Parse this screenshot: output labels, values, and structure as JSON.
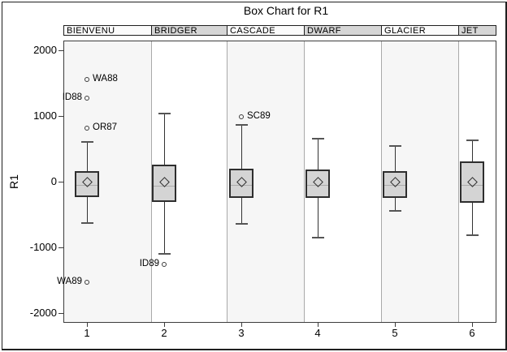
{
  "chart_data": {
    "type": "box",
    "title": "Box Chart for R1",
    "xlabel": "",
    "ylabel": "R1",
    "ylim": [
      -2135,
      2150
    ],
    "y_ticks": [
      2000,
      1000,
      0,
      -1000,
      -2000
    ],
    "x_ticks": [
      "1",
      "2",
      "3",
      "4",
      "5",
      "6"
    ],
    "grid": false,
    "legend": "none",
    "groups": [
      {
        "name": "BIENVENU",
        "x": "1",
        "low": -630,
        "q1": -240,
        "median": -55,
        "mean": 0,
        "q3": 160,
        "high": 610,
        "outliers": [
          {
            "label": "WA88",
            "value": 1560,
            "label_side": "right"
          },
          {
            "label": "ID88",
            "value": 1275,
            "label_side": "left"
          },
          {
            "label": "OR87",
            "value": 815,
            "label_side": "right"
          },
          {
            "label": "WA89",
            "value": -1530,
            "label_side": "left"
          }
        ]
      },
      {
        "name": "BRIDGER",
        "x": "2",
        "low": -1095,
        "q1": -310,
        "median": -60,
        "mean": 0,
        "q3": 255,
        "high": 1035,
        "outliers": [
          {
            "label": "ID89",
            "value": -1265,
            "label_side": "left"
          }
        ]
      },
      {
        "name": "CASCADE",
        "x": "3",
        "low": -645,
        "q1": -250,
        "median": -55,
        "mean": 0,
        "q3": 195,
        "high": 860,
        "outliers": [
          {
            "label": "SC89",
            "value": 990,
            "label_side": "right"
          }
        ]
      },
      {
        "name": "DWARF",
        "x": "4",
        "low": -850,
        "q1": -250,
        "median": -45,
        "mean": 0,
        "q3": 180,
        "high": 660,
        "outliers": []
      },
      {
        "name": "GLACIER",
        "x": "5",
        "low": -445,
        "q1": -250,
        "median": -45,
        "mean": 0,
        "q3": 165,
        "high": 540,
        "outliers": []
      },
      {
        "name": "JET",
        "x": "6",
        "low": -820,
        "q1": -315,
        "median": -50,
        "mean": 0,
        "q3": 305,
        "high": 635,
        "outliers": []
      }
    ]
  },
  "colors": {
    "box_fill": "#d4d4d4",
    "box_border": "#2e2e2e",
    "band_shade": "#f6f6f6",
    "band_plain": "#ffffff",
    "header_shade": "#d6d6d6",
    "header_light": "#fbfbfb",
    "separator": "#a9a9a9",
    "median": "#ababab",
    "whisker": "#333333",
    "cap": "#555555",
    "frame": "#3c3c3c",
    "text": "#000000"
  }
}
